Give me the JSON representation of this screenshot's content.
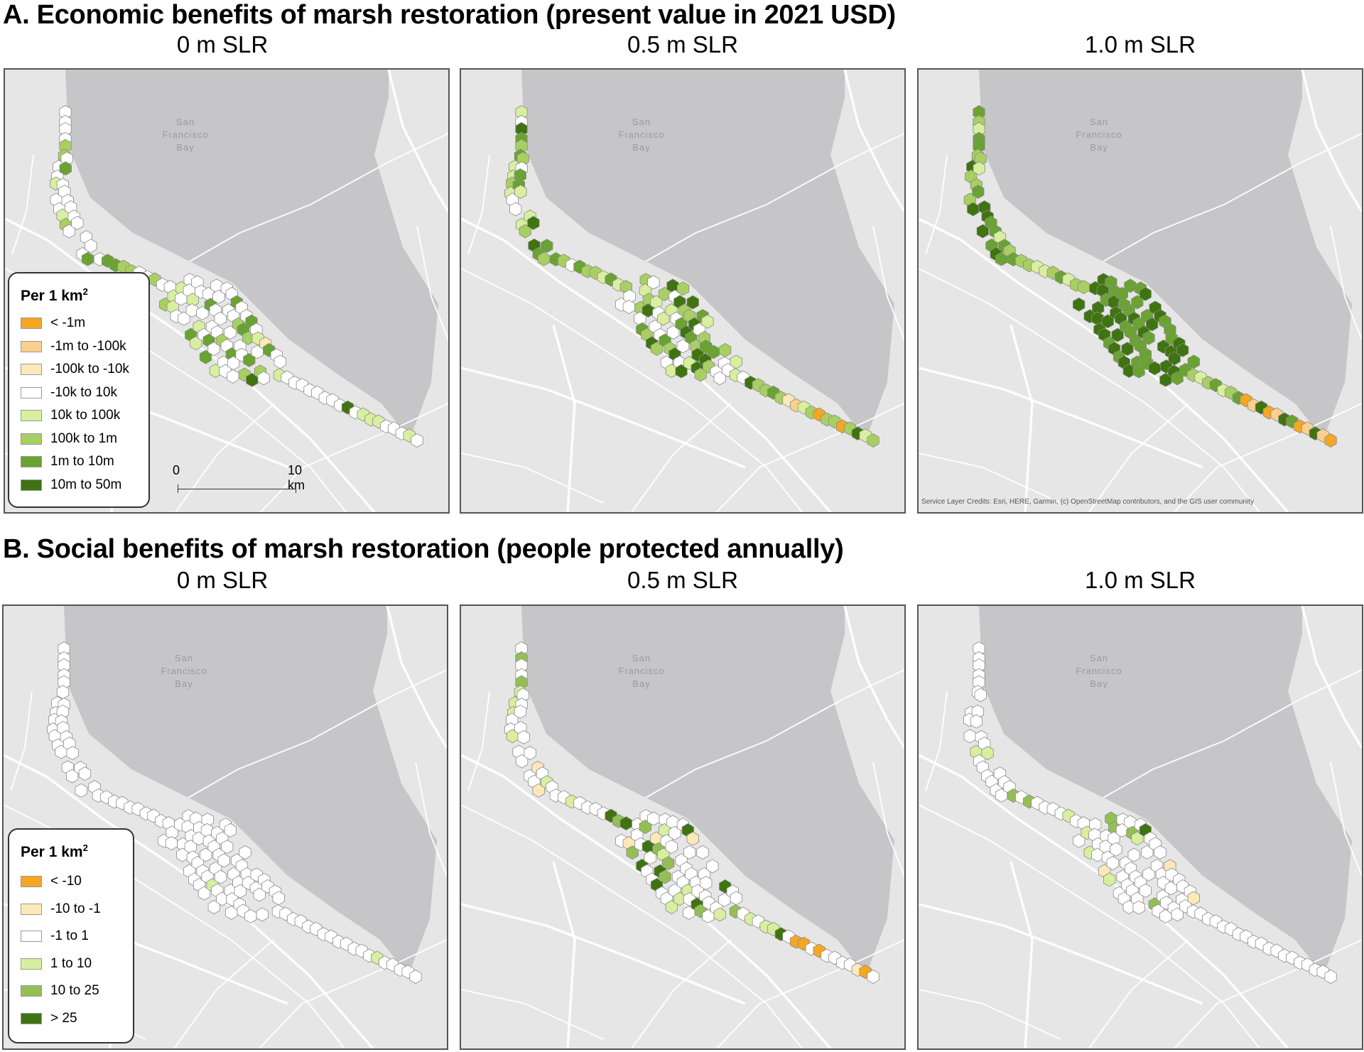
{
  "sectionA": {
    "title": "A. Economic benefits of marsh restoration (present value in 2021 USD)",
    "panels": [
      {
        "title": "0 m SLR"
      },
      {
        "title": "0.5 m SLR"
      },
      {
        "title": "1.0 m SLR"
      }
    ],
    "legend": {
      "title": "Per 1 km",
      "title_sup": "2",
      "items": [
        {
          "label": "< -1m",
          "color": "#f5a623"
        },
        {
          "label": "-1m to -100k",
          "color": "#fbd08c"
        },
        {
          "label": "-100k to -10k",
          "color": "#fde9b8"
        },
        {
          "label": "-10k to 10k",
          "color": "#ffffff"
        },
        {
          "label": "10k to 100k",
          "color": "#d8ef9f"
        },
        {
          "label": "100k to 1m",
          "color": "#a8cf62"
        },
        {
          "label": "1m to 10m",
          "color": "#6aa332"
        },
        {
          "label": "10m to 50m",
          "color": "#3f7410"
        }
      ]
    },
    "scalebar": {
      "start": "0",
      "end": "10 km"
    },
    "credits": "Service Layer Credits: Esri, HERE, Garmin, (c) OpenStreetMap contributors, and the GIS user community"
  },
  "sectionB": {
    "title": "B. Social benefits of marsh restoration (people protected annually)",
    "panels": [
      {
        "title": "0 m SLR"
      },
      {
        "title": "0.5 m SLR"
      },
      {
        "title": "1.0 m SLR"
      }
    ],
    "legend": {
      "title": "Per 1 km",
      "title_sup": "2",
      "items": [
        {
          "label": "< -10",
          "color": "#f5a623"
        },
        {
          "label": "-10 to -1",
          "color": "#fde9b8"
        },
        {
          "label": "-1 to 1",
          "color": "#ffffff"
        },
        {
          "label": "1 to 10",
          "color": "#d8ef9f"
        },
        {
          "label": "10 to 25",
          "color": "#93bf55"
        },
        {
          "label": "> 25",
          "color": "#3f7410"
        }
      ]
    }
  },
  "map": {
    "bay_label": [
      "San",
      "Francisco",
      "Bay"
    ],
    "colors": {
      "land": "#e6e6e6",
      "water": "#c6c6c9",
      "road": "#ffffff",
      "hex_stroke": "#8a8a8a"
    }
  }
}
